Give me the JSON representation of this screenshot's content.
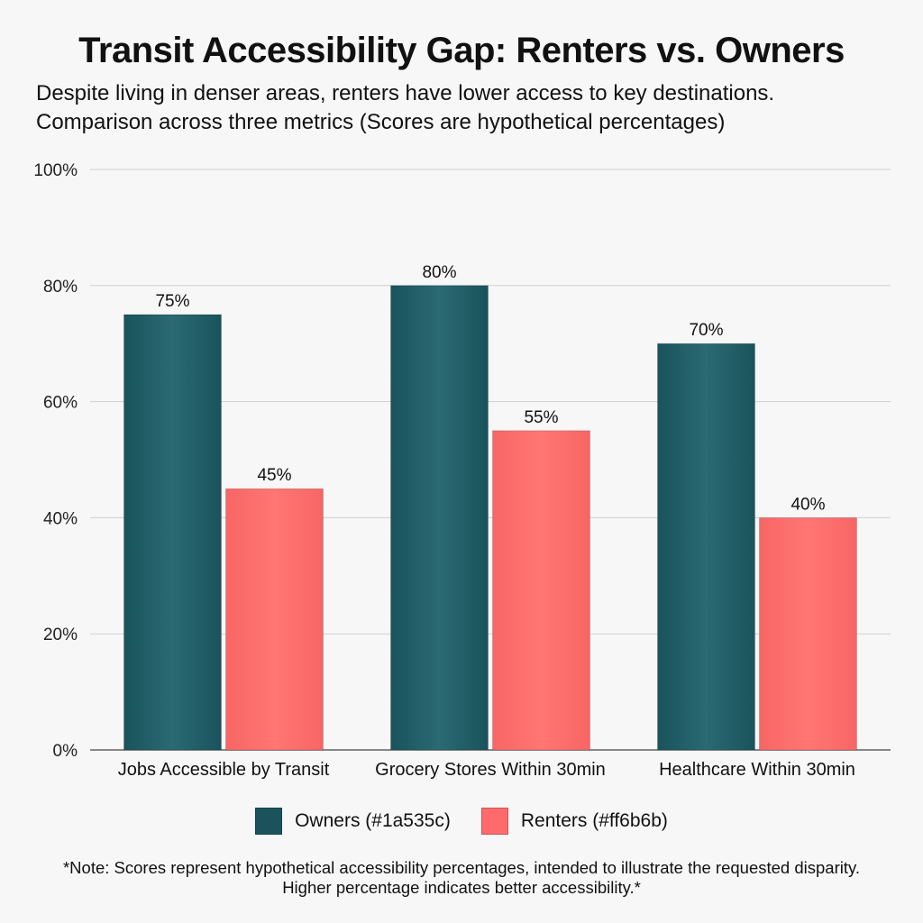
{
  "chart_data": {
    "type": "bar",
    "title": "Transit Accessibility Gap: Renters vs. Owners",
    "subtitle": [
      "Despite living in denser areas, renters have lower access to key destinations.",
      "Comparison across three metrics (Scores are hypothetical percentages)"
    ],
    "categories": [
      "Jobs Accessible by Transit",
      "Grocery Stores Within 30min",
      "Healthcare Within 30min"
    ],
    "series": [
      {
        "name": "Owners (#1a535c)",
        "color": "#1a535c",
        "values": [
          75,
          80,
          70
        ],
        "labels": [
          "75%",
          "80%",
          "70%"
        ]
      },
      {
        "name": "Renters (#ff6b6b)",
        "color": "#ff6b6b",
        "values": [
          45,
          55,
          40
        ],
        "labels": [
          "45%",
          "55%",
          "40%"
        ]
      }
    ],
    "ylim": [
      0,
      100
    ],
    "yticks": [
      "0%",
      "20%",
      "40%",
      "60%",
      "80%",
      "100%"
    ],
    "grid": true,
    "legend": "bottom",
    "note": "*Note: Scores represent hypothetical accessibility percentages, intended to illustrate the requested disparity. Higher percentage indicates better accessibility.*"
  }
}
